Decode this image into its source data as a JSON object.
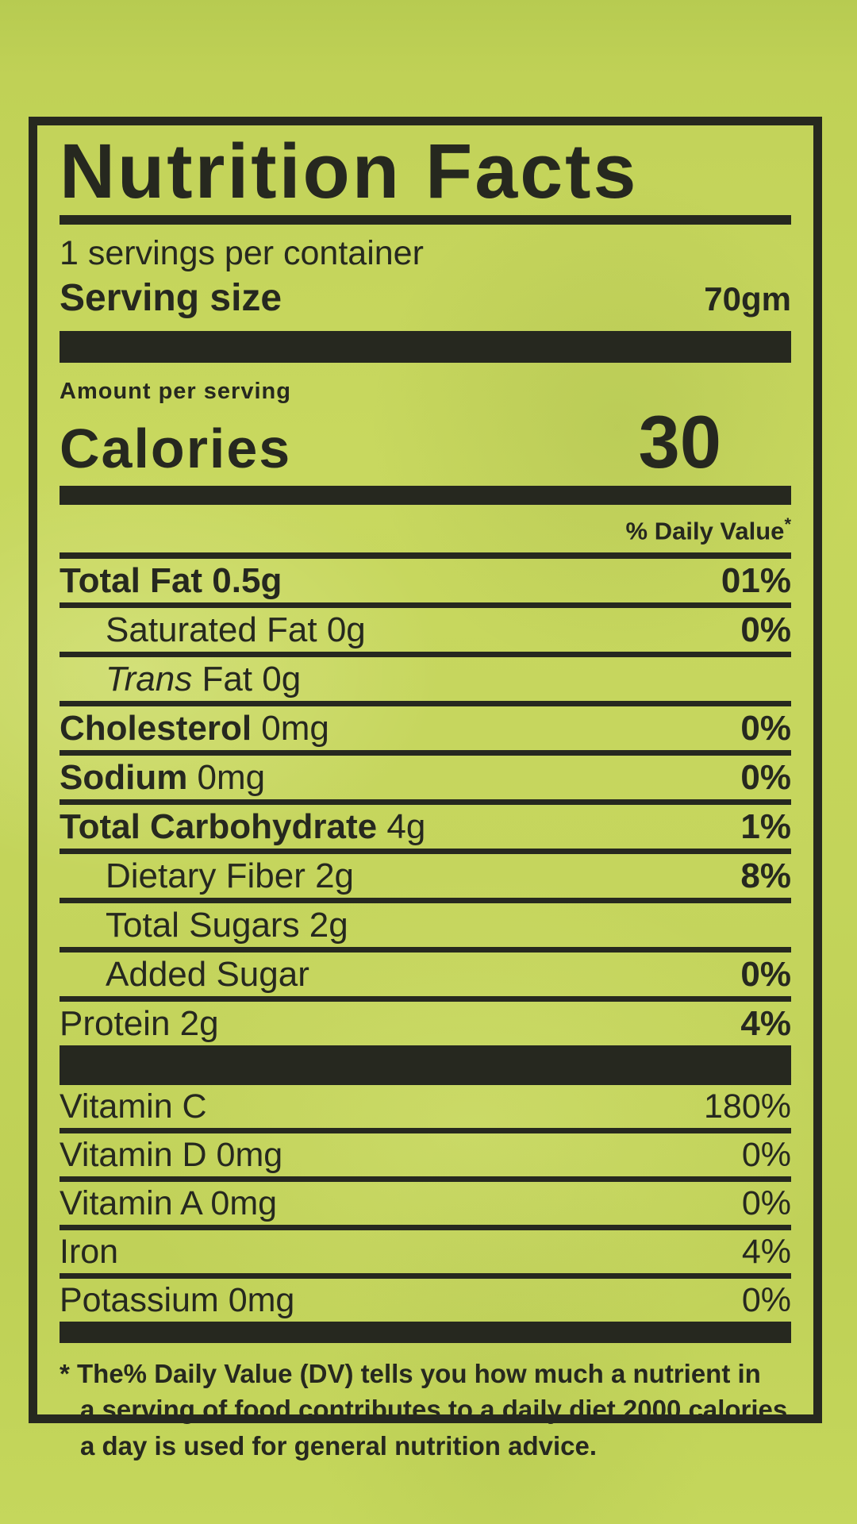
{
  "colors": {
    "background_green": "#c2d356",
    "ink": "#26281f"
  },
  "label": {
    "title": "Nutrition Facts",
    "servings_per_container": "1 servings per container",
    "serving_size_label": "Serving size",
    "serving_size_value": "70gm",
    "amount_per_serving": "Amount per serving",
    "calories_label": "Calories",
    "calories_value": "30",
    "daily_value_header": "% Daily Value",
    "daily_value_asterisk": "*",
    "rows": [
      {
        "name": "total-fat",
        "indent": false,
        "parts": [
          [
            "bold",
            "Total Fat 0.5g"
          ]
        ],
        "value": "01%"
      },
      {
        "name": "saturated-fat",
        "indent": true,
        "parts": [
          [
            "regular",
            "Saturated Fat 0g"
          ]
        ],
        "value": "0%"
      },
      {
        "name": "trans-fat",
        "indent": true,
        "parts": [
          [
            "italic",
            "Trans"
          ],
          [
            "regular",
            " Fat 0g"
          ]
        ],
        "value": ""
      },
      {
        "name": "cholesterol",
        "indent": false,
        "parts": [
          [
            "bold",
            "Cholesterol"
          ],
          [
            "regular",
            " 0mg"
          ]
        ],
        "value": "0%"
      },
      {
        "name": "sodium",
        "indent": false,
        "parts": [
          [
            "bold",
            "Sodium"
          ],
          [
            "regular",
            " 0mg"
          ]
        ],
        "value": "0%"
      },
      {
        "name": "total-carbohydrate",
        "indent": false,
        "parts": [
          [
            "bold",
            "Total Carbohydrate"
          ],
          [
            "regular",
            " 4g"
          ]
        ],
        "value": "1%"
      },
      {
        "name": "dietary-fiber",
        "indent": true,
        "parts": [
          [
            "regular",
            "Dietary Fiber 2g"
          ]
        ],
        "value": "8%"
      },
      {
        "name": "total-sugars",
        "indent": true,
        "parts": [
          [
            "regular",
            "Total Sugars 2g"
          ]
        ],
        "value": ""
      },
      {
        "name": "added-sugar",
        "indent": true,
        "parts": [
          [
            "regular",
            "Added Sugar"
          ]
        ],
        "value": "0%"
      },
      {
        "name": "protein",
        "indent": false,
        "parts": [
          [
            "regular",
            "Protein 2g"
          ]
        ],
        "value": "4%"
      }
    ],
    "micro_rows": [
      {
        "name": "vitamin-c",
        "label": "Vitamin C",
        "value": "180%"
      },
      {
        "name": "vitamin-d",
        "label": "Vitamin D 0mg",
        "value": "0%"
      },
      {
        "name": "vitamin-a",
        "label": "Vitamin A  0mg",
        "value": "0%"
      },
      {
        "name": "iron",
        "label": "Iron",
        "value": "4%"
      },
      {
        "name": "potassium",
        "label": "Potassium 0mg",
        "value": "0%"
      }
    ],
    "footnote_lines": [
      "* The% Daily Value (DV) tells you how much a nutrient in",
      "a serving of food contributes to a daily diet 2000 calories",
      "a day is used for general nutrition advice."
    ]
  }
}
